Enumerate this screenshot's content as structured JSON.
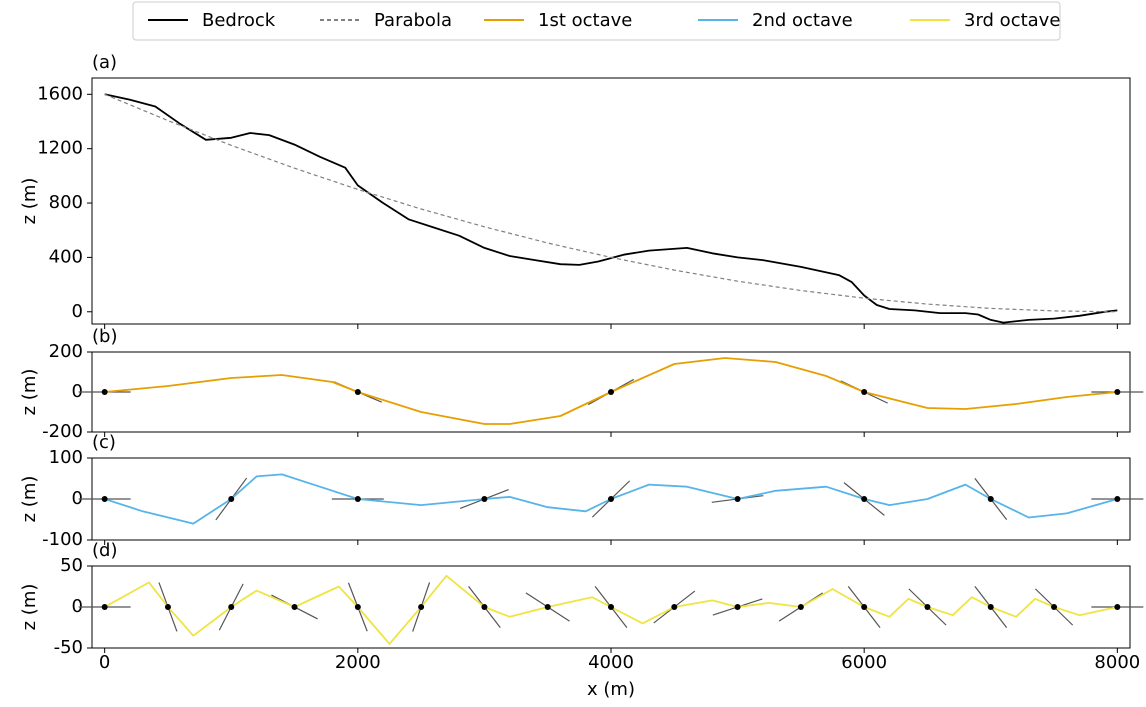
{
  "chart_data": [
    {
      "type": "line",
      "label": "(a)",
      "ylabel": "z (m)",
      "xlim": [
        -100,
        8100
      ],
      "ylim": [
        -90,
        1720
      ],
      "yticks": [
        0,
        400,
        800,
        1200,
        1600
      ],
      "series": [
        {
          "name": "Bedrock",
          "color": "#000000",
          "dashed": false,
          "x": [
            0,
            200,
            400,
            600,
            800,
            1000,
            1150,
            1300,
            1500,
            1700,
            1900,
            2000,
            2200,
            2400,
            2600,
            2800,
            3000,
            3200,
            3400,
            3600,
            3750,
            3900,
            4100,
            4300,
            4600,
            4800,
            5000,
            5200,
            5500,
            5800,
            5900,
            6000,
            6100,
            6200,
            6400,
            6600,
            6800,
            6900,
            7000,
            7100,
            7300,
            7500,
            7700,
            7900,
            8000
          ],
          "values": [
            1600,
            1560,
            1510,
            1380,
            1265,
            1280,
            1315,
            1300,
            1230,
            1140,
            1060,
            930,
            800,
            680,
            620,
            560,
            470,
            410,
            380,
            350,
            345,
            370,
            420,
            450,
            470,
            430,
            400,
            380,
            330,
            270,
            220,
            120,
            50,
            20,
            10,
            -10,
            -10,
            -20,
            -60,
            -80,
            -60,
            -50,
            -30,
            0,
            10
          ]
        },
        {
          "name": "Parabola",
          "color": "#808080",
          "dashed": true,
          "x": [
            0,
            500,
            1000,
            1500,
            2000,
            2500,
            3000,
            3500,
            4000,
            4500,
            5000,
            5500,
            6000,
            6500,
            7000,
            7500,
            8000
          ],
          "values": [
            1600,
            1406.25,
            1225,
            1056.25,
            900,
            756.25,
            625,
            506.25,
            400,
            306.25,
            225,
            156.25,
            100,
            56.25,
            25,
            6.25,
            0
          ]
        }
      ]
    },
    {
      "type": "line",
      "label": "(b)",
      "ylabel": "z (m)",
      "xlim": [
        -100,
        8100
      ],
      "ylim": [
        -200,
        200
      ],
      "yticks": [
        -200,
        0,
        200
      ],
      "series": [
        {
          "name": "1st octave",
          "color": "#e69f00",
          "dashed": false,
          "x": [
            0,
            500,
            1000,
            1400,
            1800,
            2000,
            2500,
            3000,
            3200,
            3600,
            4000,
            4500,
            4900,
            5300,
            5700,
            6000,
            6500,
            6800,
            7200,
            7600,
            8000
          ],
          "values": [
            0,
            30,
            70,
            85,
            50,
            0,
            -100,
            -160,
            -160,
            -120,
            0,
            140,
            170,
            150,
            80,
            0,
            -80,
            -85,
            -60,
            -25,
            0
          ]
        }
      ],
      "nodes": {
        "x": [
          0,
          2000,
          4000,
          6000,
          8000
        ],
        "values": [
          0,
          0,
          0,
          0,
          0
        ],
        "slopes": [
          0,
          -0.27,
          0.35,
          -0.3,
          0
        ]
      }
    },
    {
      "type": "line",
      "label": "(c)",
      "ylabel": "z (m)",
      "xlim": [
        -100,
        8100
      ],
      "ylim": [
        -100,
        100
      ],
      "yticks": [
        -100,
        0,
        100
      ],
      "series": [
        {
          "name": "2nd octave",
          "color": "#56b4e9",
          "dashed": false,
          "x": [
            0,
            300,
            700,
            1000,
            1200,
            1400,
            1700,
            2000,
            2500,
            3000,
            3200,
            3500,
            3800,
            4000,
            4300,
            4600,
            5000,
            5300,
            5700,
            6000,
            6200,
            6500,
            6800,
            7000,
            7300,
            7600,
            8000
          ],
          "values": [
            0,
            -30,
            -60,
            0,
            55,
            60,
            30,
            0,
            -15,
            0,
            5,
            -20,
            -30,
            0,
            35,
            30,
            0,
            20,
            30,
            0,
            -15,
            0,
            35,
            0,
            -45,
            -35,
            0
          ]
        }
      ],
      "nodes": {
        "x": [
          0,
          1000,
          2000,
          3000,
          4000,
          5000,
          6000,
          7000,
          8000
        ],
        "values": [
          0,
          0,
          0,
          0,
          0,
          0,
          0,
          0,
          0
        ],
        "slopes": [
          0,
          0.42,
          0,
          0.12,
          0.3,
          0.04,
          -0.25,
          -0.4,
          0
        ]
      }
    },
    {
      "type": "line",
      "label": "(d)",
      "ylabel": "z (m)",
      "xlabel": "x (m)",
      "xlim": [
        -100,
        8100
      ],
      "ylim": [
        -50,
        50
      ],
      "yticks": [
        -50,
        0,
        50
      ],
      "xticks": [
        0,
        2000,
        4000,
        6000,
        8000
      ],
      "series": [
        {
          "name": "3rd octave",
          "color": "#f0e442",
          "dashed": false,
          "x": [
            0,
            350,
            500,
            700,
            1000,
            1200,
            1500,
            1850,
            2000,
            2250,
            2500,
            2700,
            3000,
            3200,
            3500,
            3850,
            4000,
            4250,
            4500,
            4800,
            5000,
            5250,
            5500,
            5750,
            6000,
            6200,
            6350,
            6500,
            6700,
            6850,
            7000,
            7200,
            7350,
            7500,
            7700,
            8000
          ],
          "values": [
            0,
            30,
            0,
            -35,
            0,
            20,
            0,
            25,
            0,
            -45,
            0,
            38,
            0,
            -12,
            0,
            12,
            0,
            -20,
            0,
            8,
            0,
            5,
            0,
            22,
            0,
            -12,
            10,
            0,
            -10,
            12,
            0,
            -12,
            10,
            0,
            -10,
            0
          ]
        }
      ],
      "nodes": {
        "x": [
          0,
          500,
          1000,
          1500,
          2000,
          2500,
          3000,
          3500,
          4000,
          4500,
          5000,
          5500,
          6000,
          6500,
          7000,
          7500,
          8000
        ],
        "values": [
          0,
          0,
          0,
          0,
          0,
          0,
          0,
          0,
          0,
          0,
          0,
          0,
          0,
          0,
          0,
          0,
          0
        ],
        "slopes": [
          0,
          -0.42,
          0.3,
          -0.08,
          -0.4,
          0.45,
          -0.2,
          -0.1,
          -0.2,
          0.12,
          0.05,
          0.1,
          -0.2,
          -0.15,
          -0.2,
          -0.15,
          0
        ]
      }
    }
  ]
}
